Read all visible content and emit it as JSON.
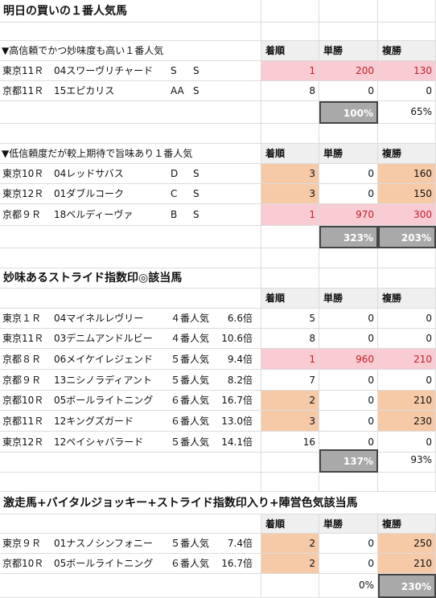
{
  "title": "明日の買いの１番人気馬",
  "headers": {
    "chakujun": "着順",
    "tansho": "単勝",
    "fukusho": "複勝"
  },
  "section1": {
    "heading": "▼高信頼でかつ妙味度も高い１番人気",
    "rows": [
      {
        "race": "東京11Ｒ",
        "horse": "04スワーヴリチャード",
        "m1": "S",
        "m2": "S",
        "rank": "1",
        "win": "200",
        "place": "130"
      },
      {
        "race": "京都11Ｒ",
        "horse": "15エピカリス",
        "m1": "AA",
        "m2": "S",
        "rank": "8",
        "win": "0",
        "place": "0"
      }
    ],
    "win_total": "100%",
    "place_total": "65%"
  },
  "section2": {
    "heading": "▼低信頼度だが較上期待で旨味あり１番人気",
    "rows": [
      {
        "race": "東京10Ｒ",
        "horse": "04レッドサバス",
        "m1": "D",
        "m2": "S",
        "rank": "3",
        "win": "0",
        "place": "160"
      },
      {
        "race": "東京12Ｒ",
        "horse": "01ダブルコーク",
        "m1": "C",
        "m2": "S",
        "rank": "3",
        "win": "0",
        "place": "150"
      },
      {
        "race": "京都９Ｒ",
        "horse": "18ベルディーヴァ",
        "m1": "B",
        "m2": "S",
        "rank": "1",
        "win": "970",
        "place": "300"
      }
    ],
    "win_total": "323%",
    "place_total": "203%"
  },
  "section3": {
    "heading": "妙味あるストライド指数印◎該当馬",
    "rows": [
      {
        "race": "東京１Ｒ",
        "horse": "04マイネルレヴリー",
        "pop": "４番人気",
        "odds": "6.6倍",
        "rank": "5",
        "win": "0",
        "place": "0"
      },
      {
        "race": "東京11Ｒ",
        "horse": "03デニムアンドルビー",
        "pop": "４番人気",
        "odds": "10.6倍",
        "rank": "8",
        "win": "0",
        "place": "0"
      },
      {
        "race": "京都８Ｒ",
        "horse": "06メイケイレジェンド",
        "pop": "５番人気",
        "odds": "9.4倍",
        "rank": "1",
        "win": "960",
        "place": "210"
      },
      {
        "race": "京都９Ｒ",
        "horse": "13ニシノラディアント",
        "pop": "５番人気",
        "odds": "8.2倍",
        "rank": "7",
        "win": "0",
        "place": "0"
      },
      {
        "race": "京都10Ｒ",
        "horse": "05ボールライトニング",
        "pop": "６番人気",
        "odds": "16.7倍",
        "rank": "2",
        "win": "0",
        "place": "210"
      },
      {
        "race": "京都11Ｒ",
        "horse": "12キングズガード",
        "pop": "６番人気",
        "odds": "13.0倍",
        "rank": "3",
        "win": "0",
        "place": "230"
      },
      {
        "race": "東京12Ｒ",
        "horse": "12ペイシャバラード",
        "pop": "５番人気",
        "odds": "14.1倍",
        "rank": "16",
        "win": "0",
        "place": "0"
      }
    ],
    "win_total": "137%",
    "place_total": "93%"
  },
  "section4": {
    "heading": "激走馬+バイタルジョッキー+ストライド指数印入り+陣営色気該当馬",
    "rows": [
      {
        "race": "東京９Ｒ",
        "horse": "01ナスノシンフォニー",
        "pop": "５番人気",
        "odds": "7.4倍",
        "rank": "2",
        "win": "0",
        "place": "250"
      },
      {
        "race": "京都10Ｒ",
        "horse": "05ボールライトニング",
        "pop": "６番人気",
        "odds": "16.7倍",
        "rank": "2",
        "win": "0",
        "place": "210"
      }
    ],
    "win_total": "0%",
    "place_total": "230%"
  },
  "colors": {
    "pink": "#f9cbd3",
    "peach": "#f6c9a7",
    "total_box": "#a9a9a9"
  }
}
